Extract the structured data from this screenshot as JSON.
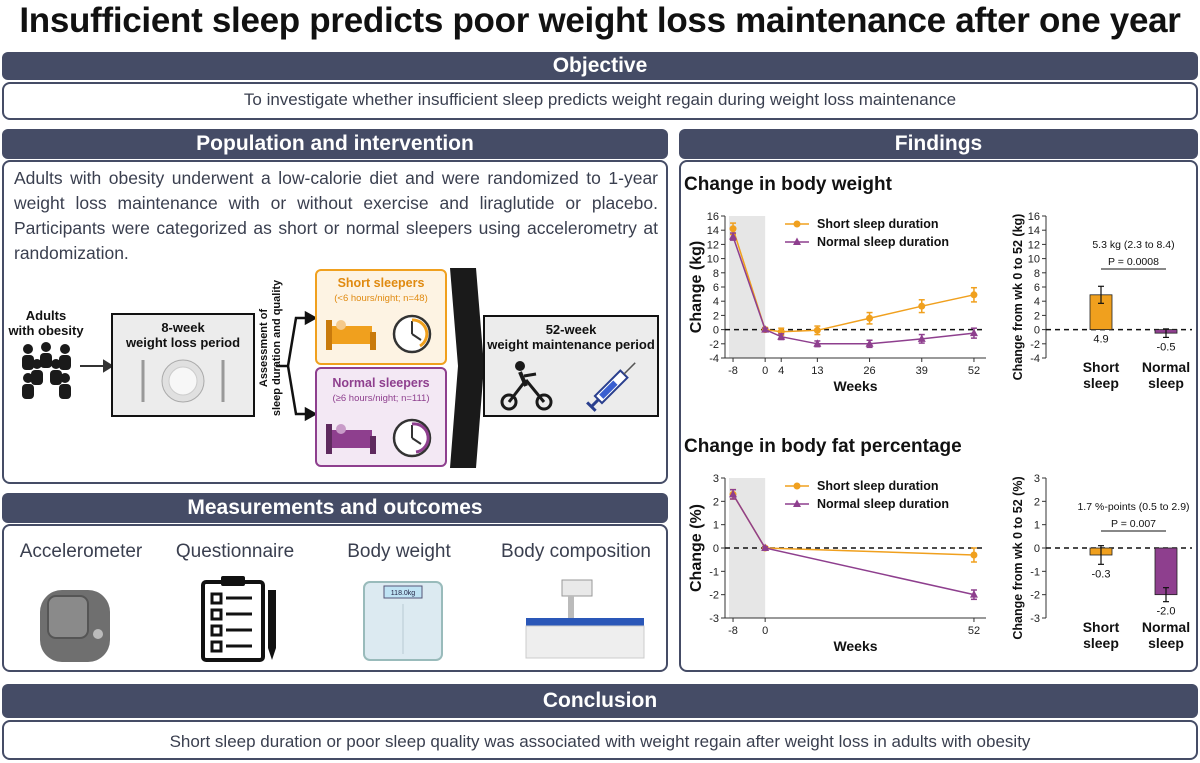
{
  "title": "Insufficient sleep predicts poor weight loss maintenance after one year",
  "objective": {
    "header": "Objective",
    "text": "To investigate whether insufficient sleep predicts weight regain during weight loss maintenance"
  },
  "population": {
    "header": "Population and intervention",
    "text": "Adults with obesity underwent a low-calorie diet and were randomized to 1-year weight loss maintenance with or without exercise and liraglutide or placebo. Participants were categorized as short or normal sleepers using accelerometry at randomization.",
    "flow": {
      "adults": [
        "Adults",
        "with obesity"
      ],
      "diet_period": [
        "8-week",
        "weight loss period"
      ],
      "assessment": [
        "Assessment of",
        "sleep duration and quality"
      ],
      "short_title": "Short sleepers",
      "short_sub": "(<6 hours/night; n=48)",
      "normal_title": "Normal sleepers",
      "normal_sub": "(≥6 hours/night; n=111)",
      "maintenance": [
        "52-week",
        "weight maintenance period"
      ]
    }
  },
  "measurements": {
    "header": "Measurements and outcomes",
    "items": [
      "Accelerometer",
      "Questionnaire",
      "Body weight",
      "Body composition"
    ],
    "scale_display": "118.0kg"
  },
  "findings": {
    "header": "Findings",
    "colors": {
      "short": "#f0a01e",
      "normal": "#8e3f8e",
      "shade": "#e6e6e6"
    }
  },
  "conclusion": {
    "header": "Conclusion",
    "text": "Short sleep duration or poor sleep quality was associated with weight regain after weight loss in adults with obesity"
  },
  "chart_data": [
    {
      "type": "line",
      "title": "Change in body weight",
      "xlabel": "Weeks",
      "ylabel": "Change (kg)",
      "x": [
        -8,
        0,
        4,
        13,
        26,
        39,
        52
      ],
      "xticks": [
        -8,
        0,
        4,
        13,
        26,
        39,
        52
      ],
      "ylim": [
        -4,
        16
      ],
      "yticks": [
        16,
        14,
        12,
        10,
        8,
        6,
        4,
        2,
        0,
        -2,
        -4
      ],
      "legend": "top-right",
      "series": [
        {
          "name": "Short sleep duration",
          "values": [
            14.2,
            0,
            -0.3,
            -0.1,
            1.6,
            3.3,
            4.9
          ],
          "err": [
            0.8,
            0.3,
            0.5,
            0.6,
            0.8,
            0.9,
            1.0
          ]
        },
        {
          "name": "Normal sleep duration",
          "values": [
            13.1,
            0,
            -1.0,
            -2.0,
            -2.0,
            -1.3,
            -0.5
          ],
          "err": [
            0.5,
            0.2,
            0.4,
            0.4,
            0.5,
            0.6,
            0.7
          ]
        }
      ]
    },
    {
      "type": "bar",
      "categories": [
        "Short sleep",
        "Normal sleep"
      ],
      "values": [
        4.9,
        -0.5
      ],
      "value_labels": [
        "4.9",
        "-0.5"
      ],
      "err": [
        1.2,
        0.6
      ],
      "ylabel": "Change from wk 0 to 52 (kg)",
      "ylim": [
        -4,
        16
      ],
      "yticks": [
        16,
        14,
        12,
        10,
        8,
        6,
        4,
        2,
        0,
        -2,
        -4
      ],
      "annotation": "5.3 kg (2.3 to 8.4)",
      "p_value": "P = 0.0008"
    },
    {
      "type": "line",
      "title": "Change in body fat percentage",
      "xlabel": "Weeks",
      "ylabel": "Change (%)",
      "x": [
        -8,
        0,
        52
      ],
      "xticks": [
        -8,
        0,
        52
      ],
      "ylim": [
        -3,
        3
      ],
      "yticks": [
        3,
        2,
        1,
        0,
        -1,
        -2,
        -3
      ],
      "legend": "top-right",
      "series": [
        {
          "name": "Short sleep duration",
          "values": [
            2.3,
            0,
            -0.3
          ],
          "err": [
            0.2,
            0.05,
            0.3
          ]
        },
        {
          "name": "Normal sleep duration",
          "values": [
            2.3,
            0,
            -2.0
          ],
          "err": [
            0.2,
            0.05,
            0.2
          ]
        }
      ]
    },
    {
      "type": "bar",
      "categories": [
        "Short sleep",
        "Normal sleep"
      ],
      "values": [
        -0.3,
        -2.0
      ],
      "value_labels": [
        "-0.3",
        "-2.0"
      ],
      "err": [
        0.4,
        0.3
      ],
      "ylabel": "Change from wk 0 to 52 (%)",
      "ylim": [
        -3,
        3
      ],
      "yticks": [
        3,
        2,
        1,
        0,
        -1,
        -2,
        -3
      ],
      "annotation": "1.7 %-points (0.5 to 2.9)",
      "p_value": "P = 0.007"
    }
  ]
}
